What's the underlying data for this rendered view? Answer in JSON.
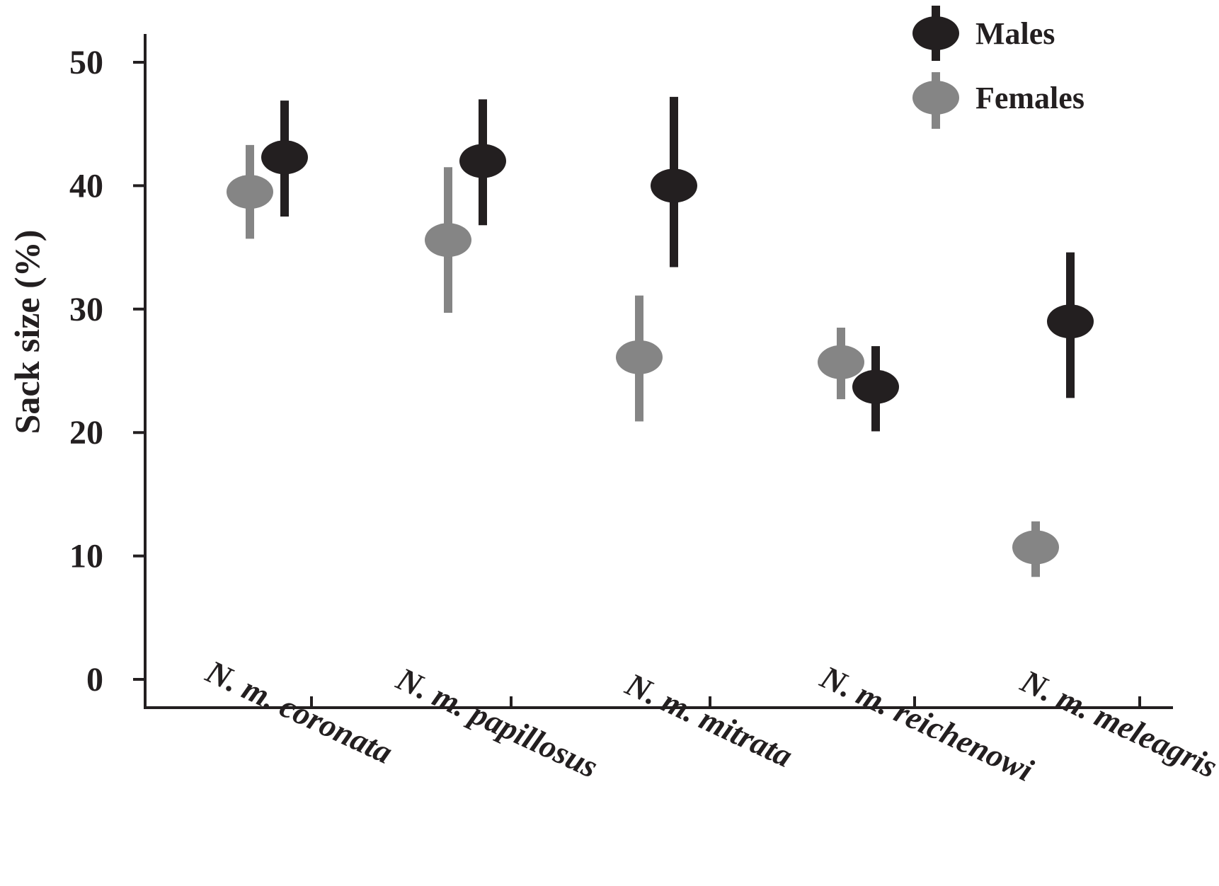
{
  "chart_data": {
    "type": "scatter",
    "title": "",
    "xlabel": "",
    "ylabel": "Sack size (%)",
    "ylim": [
      0,
      50
    ],
    "yticks": [
      0,
      10,
      20,
      30,
      40,
      50
    ],
    "grid": false,
    "legend_position": "top-right",
    "categories": [
      "N. m. coronata",
      "N. m. papillosus",
      "N. m. mitrata",
      "N. m. reichenowi",
      "N. m. meleagris"
    ],
    "series": [
      {
        "name": "Males",
        "color": "#231f20",
        "values": [
          42.3,
          42.0,
          40.0,
          23.7,
          29.0
        ],
        "err_low": [
          37.5,
          36.8,
          33.4,
          20.1,
          22.8
        ],
        "err_high": [
          46.9,
          47.0,
          47.2,
          27.0,
          34.6
        ]
      },
      {
        "name": "Females",
        "color": "#858585",
        "values": [
          39.5,
          35.6,
          26.1,
          25.7,
          10.7
        ],
        "err_low": [
          35.7,
          29.7,
          20.9,
          22.7,
          8.3
        ],
        "err_high": [
          43.3,
          41.5,
          31.1,
          28.5,
          12.8
        ]
      }
    ]
  }
}
